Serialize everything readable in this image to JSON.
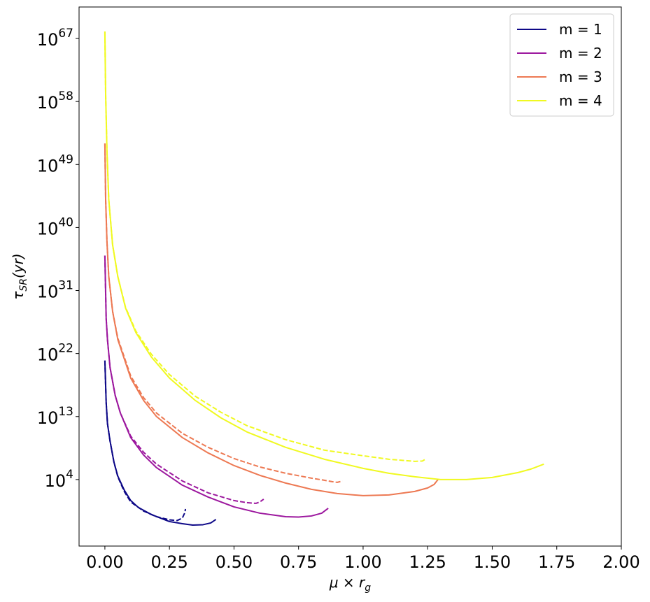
{
  "chart_data": {
    "type": "line",
    "title": "",
    "xlabel": "μ × r_g",
    "ylabel": "τ_SR(yr)",
    "xlim": [
      -0.1,
      2.0
    ],
    "ylog": true,
    "ylim_log10": [
      -5.5,
      71.5
    ],
    "x_ticks": [
      0.0,
      0.25,
      0.5,
      0.75,
      1.0,
      1.25,
      1.5,
      1.75,
      2.0
    ],
    "x_tick_labels": [
      "0.00",
      "0.25",
      "0.50",
      "0.75",
      "1.00",
      "1.25",
      "1.50",
      "1.75",
      "2.00"
    ],
    "y_ticks_log10": [
      4,
      13,
      22,
      31,
      40,
      49,
      58,
      67
    ],
    "y_tick_labels": [
      {
        "base": "10",
        "exp": "4"
      },
      {
        "base": "10",
        "exp": "13"
      },
      {
        "base": "10",
        "exp": "22"
      },
      {
        "base": "10",
        "exp": "31"
      },
      {
        "base": "10",
        "exp": "40"
      },
      {
        "base": "10",
        "exp": "49"
      },
      {
        "base": "10",
        "exp": "58"
      },
      {
        "base": "10",
        "exp": "67"
      }
    ],
    "legend_position": "top-right",
    "grid": false,
    "series": [
      {
        "name": "m = 1",
        "color": "#0d0887",
        "solid": [
          [
            0.0,
            21.0
          ],
          [
            0.005,
            15.0
          ],
          [
            0.01,
            12.0
          ],
          [
            0.02,
            9.5
          ],
          [
            0.035,
            6.5
          ],
          [
            0.05,
            4.5
          ],
          [
            0.075,
            2.5
          ],
          [
            0.1,
            1.0
          ],
          [
            0.13,
            0.0
          ],
          [
            0.18,
            -1.0
          ],
          [
            0.25,
            -2.0
          ],
          [
            0.3,
            -2.3
          ],
          [
            0.34,
            -2.5
          ],
          [
            0.38,
            -2.45
          ],
          [
            0.41,
            -2.2
          ],
          [
            0.43,
            -1.7
          ]
        ],
        "dashed": [
          [
            0.0,
            21.0
          ],
          [
            0.005,
            15.0
          ],
          [
            0.01,
            12.0
          ],
          [
            0.02,
            9.5
          ],
          [
            0.035,
            6.5
          ],
          [
            0.05,
            4.4
          ],
          [
            0.075,
            2.3
          ],
          [
            0.1,
            0.8
          ],
          [
            0.15,
            -0.5
          ],
          [
            0.2,
            -1.3
          ],
          [
            0.25,
            -1.75
          ],
          [
            0.28,
            -1.85
          ],
          [
            0.3,
            -1.5
          ],
          [
            0.31,
            -0.7
          ],
          [
            0.312,
            -0.2
          ]
        ]
      },
      {
        "name": "m = 2",
        "color": "#9c179e",
        "solid": [
          [
            0.0,
            36.0
          ],
          [
            0.005,
            27.0
          ],
          [
            0.01,
            24.0
          ],
          [
            0.02,
            20.0
          ],
          [
            0.04,
            16.0
          ],
          [
            0.06,
            13.5
          ],
          [
            0.1,
            10.0
          ],
          [
            0.15,
            7.5
          ],
          [
            0.2,
            5.7
          ],
          [
            0.3,
            3.2
          ],
          [
            0.4,
            1.5
          ],
          [
            0.5,
            0.1
          ],
          [
            0.6,
            -0.8
          ],
          [
            0.7,
            -1.3
          ],
          [
            0.75,
            -1.35
          ],
          [
            0.8,
            -1.2
          ],
          [
            0.84,
            -0.8
          ],
          [
            0.865,
            -0.1
          ]
        ],
        "dashed": [
          [
            0.0,
            36.0
          ],
          [
            0.005,
            27.0
          ],
          [
            0.01,
            24.0
          ],
          [
            0.02,
            20.0
          ],
          [
            0.04,
            16.0
          ],
          [
            0.06,
            13.5
          ],
          [
            0.1,
            10.2
          ],
          [
            0.15,
            7.9
          ],
          [
            0.2,
            6.2
          ],
          [
            0.3,
            3.8
          ],
          [
            0.4,
            2.1
          ],
          [
            0.5,
            1.0
          ],
          [
            0.55,
            0.7
          ],
          [
            0.585,
            0.6
          ],
          [
            0.6,
            0.8
          ],
          [
            0.615,
            1.2
          ]
        ]
      },
      {
        "name": "m = 3",
        "color": "#ed7953",
        "solid": [
          [
            0.0,
            52.0
          ],
          [
            0.003,
            44.0
          ],
          [
            0.008,
            38.0
          ],
          [
            0.015,
            33.0
          ],
          [
            0.03,
            28.0
          ],
          [
            0.05,
            24.0
          ],
          [
            0.1,
            18.5
          ],
          [
            0.15,
            15.3
          ],
          [
            0.2,
            13.0
          ],
          [
            0.3,
            10.0
          ],
          [
            0.4,
            7.8
          ],
          [
            0.5,
            6.0
          ],
          [
            0.6,
            4.6
          ],
          [
            0.7,
            3.5
          ],
          [
            0.8,
            2.6
          ],
          [
            0.9,
            2.0
          ],
          [
            1.0,
            1.7
          ],
          [
            1.1,
            1.8
          ],
          [
            1.2,
            2.3
          ],
          [
            1.25,
            2.8
          ],
          [
            1.275,
            3.3
          ],
          [
            1.29,
            4.0
          ]
        ],
        "dashed": [
          [
            0.0,
            52.0
          ],
          [
            0.003,
            44.0
          ],
          [
            0.008,
            38.0
          ],
          [
            0.015,
            33.0
          ],
          [
            0.03,
            28.0
          ],
          [
            0.05,
            24.2
          ],
          [
            0.1,
            18.8
          ],
          [
            0.15,
            15.7
          ],
          [
            0.2,
            13.5
          ],
          [
            0.3,
            10.6
          ],
          [
            0.4,
            8.6
          ],
          [
            0.5,
            7.0
          ],
          [
            0.6,
            5.8
          ],
          [
            0.7,
            4.9
          ],
          [
            0.8,
            4.2
          ],
          [
            0.85,
            3.9
          ],
          [
            0.88,
            3.7
          ],
          [
            0.9,
            3.6
          ],
          [
            0.92,
            3.8
          ]
        ]
      },
      {
        "name": "m = 4",
        "color": "#f0f921",
        "solid": [
          [
            0.0,
            68.0
          ],
          [
            0.003,
            59.0
          ],
          [
            0.008,
            51.0
          ],
          [
            0.015,
            44.0
          ],
          [
            0.03,
            37.5
          ],
          [
            0.05,
            33.0
          ],
          [
            0.08,
            28.5
          ],
          [
            0.12,
            25.0
          ],
          [
            0.18,
            21.5
          ],
          [
            0.25,
            18.5
          ],
          [
            0.35,
            15.3
          ],
          [
            0.45,
            12.8
          ],
          [
            0.55,
            10.8
          ],
          [
            0.7,
            8.6
          ],
          [
            0.85,
            6.9
          ],
          [
            1.0,
            5.6
          ],
          [
            1.1,
            4.9
          ],
          [
            1.2,
            4.4
          ],
          [
            1.3,
            4.0
          ],
          [
            1.4,
            4.0
          ],
          [
            1.5,
            4.3
          ],
          [
            1.6,
            5.0
          ],
          [
            1.65,
            5.5
          ],
          [
            1.7,
            6.2
          ]
        ],
        "dashed": [
          [
            0.0,
            68.0
          ],
          [
            0.003,
            59.0
          ],
          [
            0.008,
            51.0
          ],
          [
            0.015,
            44.0
          ],
          [
            0.03,
            37.5
          ],
          [
            0.05,
            33.0
          ],
          [
            0.08,
            28.6
          ],
          [
            0.12,
            25.2
          ],
          [
            0.18,
            21.9
          ],
          [
            0.25,
            19.0
          ],
          [
            0.35,
            15.9
          ],
          [
            0.45,
            13.6
          ],
          [
            0.55,
            11.7
          ],
          [
            0.7,
            9.7
          ],
          [
            0.85,
            8.2
          ],
          [
            1.0,
            7.4
          ],
          [
            1.1,
            6.9
          ],
          [
            1.2,
            6.6
          ],
          [
            1.23,
            6.65
          ],
          [
            1.245,
            7.0
          ]
        ]
      }
    ]
  }
}
